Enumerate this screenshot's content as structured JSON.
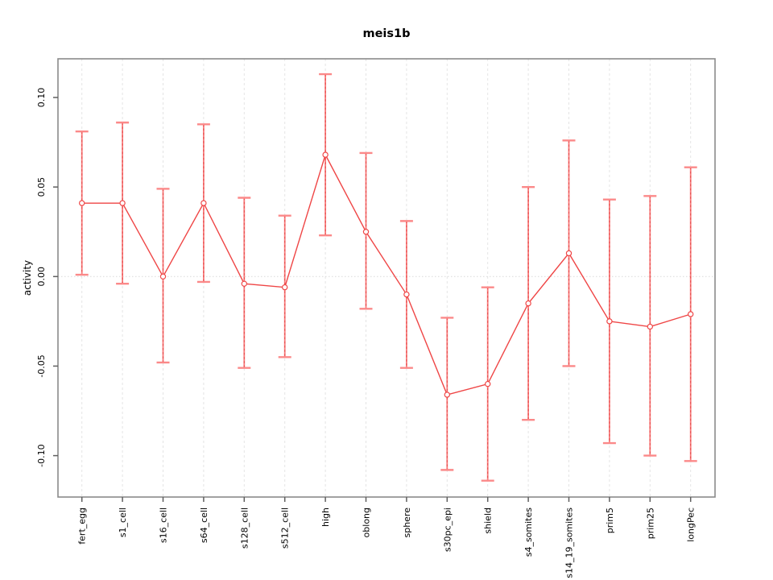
{
  "chart_data": {
    "type": "line",
    "title": "meis1b",
    "xlabel": "",
    "ylabel": "activity",
    "legend": "none",
    "grid": {
      "vertical_dashed_at_categories": true,
      "horizontal_dotted_zero_line": true
    },
    "categories": [
      "fert_egg",
      "s1_cell",
      "s16_cell",
      "s64_cell",
      "s128_cell",
      "s512_cell",
      "high",
      "oblong",
      "sphere",
      "s30pc_epi",
      "shield",
      "s4_somites",
      "s14_19_somites",
      "prim5",
      "prim25",
      "longPec"
    ],
    "series": [
      {
        "name": "activity",
        "marker": "open-circle",
        "values": [
          0.041,
          0.041,
          0.0,
          0.041,
          -0.004,
          -0.006,
          0.068,
          0.025,
          -0.01,
          -0.066,
          -0.06,
          -0.015,
          0.013,
          -0.025,
          -0.028,
          -0.021
        ],
        "error_low": [
          0.001,
          -0.004,
          -0.048,
          -0.003,
          -0.051,
          -0.045,
          0.023,
          -0.018,
          -0.051,
          -0.108,
          -0.114,
          -0.08,
          -0.05,
          -0.093,
          -0.1,
          -0.103
        ],
        "error_high": [
          0.081,
          0.086,
          0.049,
          0.085,
          0.044,
          0.034,
          0.113,
          0.069,
          0.031,
          -0.023,
          -0.006,
          0.05,
          0.076,
          0.043,
          0.045,
          0.061
        ]
      }
    ],
    "yticks": [
      "0.10",
      "0.05",
      "0.00",
      "-0.05",
      "-0.10"
    ],
    "ytick_values": [
      0.1,
      0.05,
      0.0,
      -0.05,
      -0.1
    ],
    "ylim": [
      -0.123,
      0.122
    ],
    "colors": {
      "series_line": "#ef4646",
      "marker_stroke": "#ef4646",
      "errorbar_stem": "#f87b7b",
      "errorbar_stem_dash": "#e64c4c",
      "errorbar_cap": "#fb8989",
      "gridline": "#e4e4e4",
      "zero_line": "#d9d9d9",
      "axis_box": "#8a8a8a",
      "tick_mark": "#5f5f5f",
      "text": "#000000"
    }
  }
}
